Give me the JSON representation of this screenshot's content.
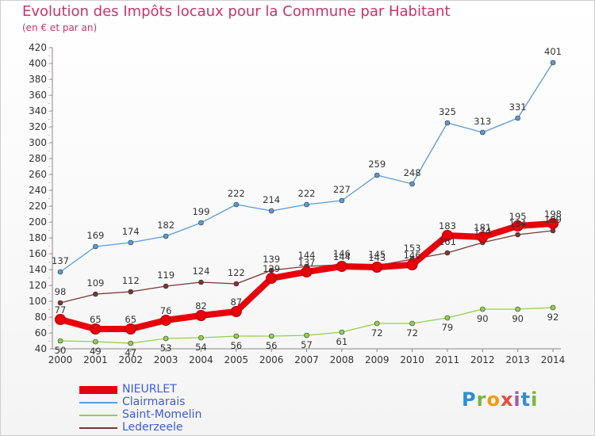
{
  "header": {
    "title": "Evolution des Impôts locaux pour la Commune par Habitant",
    "subtitle": "(en € et par an)"
  },
  "logo": {
    "letters": [
      "P",
      "r",
      "o",
      "x",
      "i",
      "t",
      "i"
    ]
  },
  "chart_data": {
    "type": "line",
    "title": "Evolution des Impôts locaux pour la Commune par Habitant",
    "subtitle": "(en € et par an)",
    "xlabel": "",
    "ylabel": "",
    "categories": [
      "2000",
      "2001",
      "2002",
      "2003",
      "2004",
      "2005",
      "2006",
      "2007",
      "2008",
      "2009",
      "2010",
      "2011",
      "2012",
      "2013",
      "2014"
    ],
    "ylim": [
      40,
      420
    ],
    "yticks": [
      40,
      60,
      80,
      100,
      120,
      140,
      160,
      180,
      200,
      220,
      240,
      260,
      280,
      300,
      320,
      340,
      360,
      380,
      400,
      420
    ],
    "grid": false,
    "legend_position": "bottom-left",
    "series": [
      {
        "name": "NIEURLET",
        "color": "#e8000b",
        "values": [
          77,
          65,
          65,
          76,
          82,
          87,
          129,
          137,
          144,
          143,
          146,
          183,
          181,
          195,
          198
        ]
      },
      {
        "name": "Clairmarais",
        "color": "#5b9bd5",
        "values": [
          137,
          169,
          174,
          182,
          199,
          222,
          214,
          222,
          227,
          259,
          248,
          325,
          313,
          331,
          401
        ]
      },
      {
        "name": "Saint-Momelin",
        "color": "#92d050",
        "values": [
          50,
          49,
          47,
          53,
          54,
          56,
          56,
          57,
          61,
          72,
          72,
          79,
          90,
          90,
          92
        ]
      },
      {
        "name": "Lederzeele",
        "color": "#7a3636",
        "values": [
          98,
          109,
          112,
          119,
          124,
          122,
          139,
          144,
          146,
          145,
          153,
          161,
          174,
          184,
          189
        ]
      }
    ],
    "data_labels": {
      "NIEURLET": [
        "77",
        "65",
        "65",
        "76",
        "82",
        "87",
        "129",
        "137",
        "144",
        "143",
        "146",
        "183",
        "181",
        "195",
        "198"
      ],
      "Clairmarais": [
        "137",
        "169",
        "174",
        "182",
        "199",
        "222",
        "214",
        "222",
        "227",
        "259",
        "248",
        "325",
        "313",
        "331",
        "401"
      ],
      "Saint-Momelin": [
        "50",
        "49",
        "47",
        "53",
        "54",
        "56",
        "56",
        "57",
        "61",
        "72",
        "72",
        "79",
        "90",
        "90",
        "92"
      ],
      "Lederzeele": [
        "98",
        "109",
        "112",
        "119",
        "124",
        "122",
        "139",
        "144",
        "146",
        "145",
        "153",
        "161",
        "174",
        "184",
        "189"
      ]
    }
  }
}
